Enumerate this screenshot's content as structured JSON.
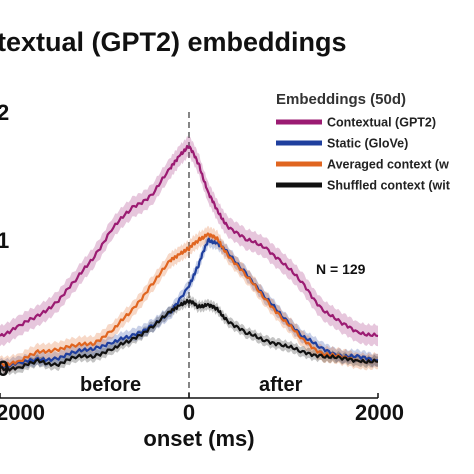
{
  "chart_data": {
    "type": "line",
    "title": "textual (GPT2) embeddings",
    "xlabel": "onset (ms)",
    "ylabel": "",
    "xlim": [
      -2000,
      2000
    ],
    "ylim": [
      0,
      0.2
    ],
    "x_ticks": [
      {
        "value": -2000,
        "label": "2000"
      },
      {
        "value": 0,
        "label": "0"
      },
      {
        "value": 2000,
        "label": "2000"
      }
    ],
    "y_ticks": [
      {
        "value": 0,
        "label": "0"
      },
      {
        "value": 0.1,
        "label": "1"
      },
      {
        "value": 0.2,
        "label": "2"
      }
    ],
    "grid": false,
    "vline_at": 0,
    "annotations": {
      "before": "before",
      "after": "after",
      "n": "N = 129"
    },
    "legend": {
      "position": "top-right",
      "title": "Embeddings (50d)",
      "entries": [
        "Contextual (GPT2)",
        "Static (GloVe)",
        "Averaged context (w",
        "Shuffled context (wit"
      ]
    },
    "series": [
      {
        "name": "Contextual (GPT2)",
        "color": "#9b1b72",
        "x": [
          -2000,
          -1800,
          -1600,
          -1400,
          -1200,
          -1000,
          -800,
          -600,
          -400,
          -200,
          -100,
          0,
          100,
          200,
          300,
          400,
          600,
          800,
          1000,
          1200,
          1400,
          1600,
          1800,
          2000
        ],
        "y": [
          0.025,
          0.033,
          0.04,
          0.052,
          0.068,
          0.088,
          0.11,
          0.125,
          0.135,
          0.155,
          0.167,
          0.173,
          0.16,
          0.138,
          0.122,
          0.112,
          0.1,
          0.095,
          0.082,
          0.066,
          0.047,
          0.035,
          0.028,
          0.025
        ],
        "band": 0.008
      },
      {
        "name": "Static (GloVe)",
        "color": "#1f3f9e",
        "x": [
          -2000,
          -1800,
          -1600,
          -1400,
          -1200,
          -1000,
          -800,
          -600,
          -400,
          -200,
          0,
          100,
          200,
          300,
          400,
          600,
          800,
          1000,
          1200,
          1400,
          1600,
          1800,
          2000
        ],
        "y": [
          0.002,
          0.004,
          0.006,
          0.008,
          0.012,
          0.016,
          0.02,
          0.025,
          0.033,
          0.042,
          0.065,
          0.08,
          0.1,
          0.098,
          0.09,
          0.075,
          0.055,
          0.04,
          0.025,
          0.015,
          0.01,
          0.008,
          0.006
        ],
        "band": 0.005
      },
      {
        "name": "Averaged context (w",
        "color": "#e06520",
        "x": [
          -2000,
          -1800,
          -1600,
          -1400,
          -1200,
          -1000,
          -800,
          -600,
          -400,
          -200,
          -100,
          0,
          100,
          200,
          300,
          400,
          600,
          800,
          1000,
          1200,
          1400,
          1600,
          1800,
          2000
        ],
        "y": [
          0.003,
          0.005,
          0.012,
          0.015,
          0.017,
          0.02,
          0.03,
          0.045,
          0.065,
          0.083,
          0.09,
          0.093,
          0.1,
          0.105,
          0.1,
          0.09,
          0.072,
          0.055,
          0.038,
          0.022,
          0.012,
          0.008,
          0.006,
          0.005
        ],
        "band": 0.006
      },
      {
        "name": "Shuffled context (wit",
        "color": "#111111",
        "x": [
          -2000,
          -1800,
          -1600,
          -1400,
          -1200,
          -1000,
          -800,
          -600,
          -400,
          -200,
          -100,
          0,
          100,
          200,
          300,
          400,
          600,
          800,
          1000,
          1200,
          1400,
          1600,
          1800,
          2000
        ],
        "y": [
          0.0,
          0.0,
          0.005,
          0.003,
          0.008,
          0.01,
          0.015,
          0.022,
          0.032,
          0.043,
          0.05,
          0.052,
          0.048,
          0.05,
          0.045,
          0.038,
          0.027,
          0.022,
          0.018,
          0.012,
          0.01,
          0.007,
          0.006,
          0.005
        ],
        "band": 0.004
      }
    ]
  }
}
